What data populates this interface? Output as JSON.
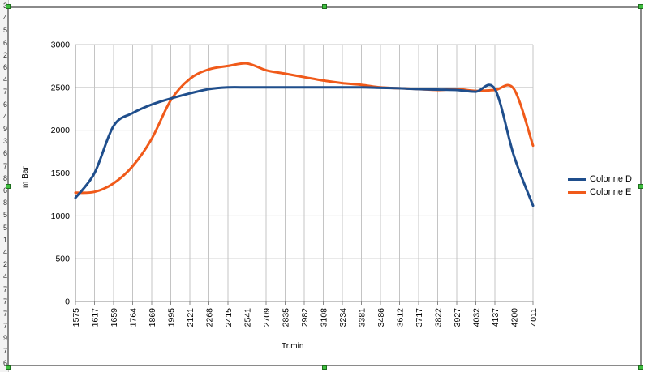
{
  "sheet": {
    "row_fragments": [
      "3",
      "4",
      "5",
      "6",
      "2",
      "6",
      "4",
      "7",
      "6",
      "4",
      "9",
      "3",
      "6",
      "7",
      "8",
      "6",
      "8",
      "5",
      "5",
      "1",
      "4",
      "2",
      "4",
      "7",
      "7",
      "7",
      "7",
      "9",
      "7",
      "6"
    ]
  },
  "chart_data": {
    "type": "line",
    "xlabel": "Tr.min",
    "ylabel": "m Bar",
    "ylim": [
      0,
      3000
    ],
    "yticks": [
      0,
      500,
      1000,
      1500,
      2000,
      2500,
      3000
    ],
    "grid": true,
    "legend_position": "right",
    "x_tick_labels": [
      "1575",
      "1617",
      "1659",
      "1764",
      "1869",
      "1995",
      "2121",
      "2268",
      "2415",
      "2541",
      "2709",
      "2835",
      "2982",
      "3108",
      "3234",
      "3381",
      "3486",
      "3612",
      "3717",
      "3822",
      "3927",
      "4032",
      "4137",
      "4200",
      "4011"
    ],
    "series": [
      {
        "name": "Colonne D",
        "color": "#1f4e8c",
        "values": [
          1210,
          1500,
          2050,
          2200,
          2300,
          2370,
          2430,
          2480,
          2500,
          2500,
          2500,
          2500,
          2500,
          2500,
          2500,
          2500,
          2495,
          2490,
          2480,
          2475,
          2470,
          2450,
          2480,
          1700,
          1120
        ]
      },
      {
        "name": "Colonne E",
        "color": "#f05a1a",
        "values": [
          1270,
          1280,
          1380,
          1580,
          1900,
          2350,
          2600,
          2710,
          2750,
          2780,
          2700,
          2660,
          2620,
          2580,
          2550,
          2530,
          2500,
          2490,
          2480,
          2470,
          2480,
          2460,
          2470,
          2480,
          1820
        ]
      }
    ]
  }
}
